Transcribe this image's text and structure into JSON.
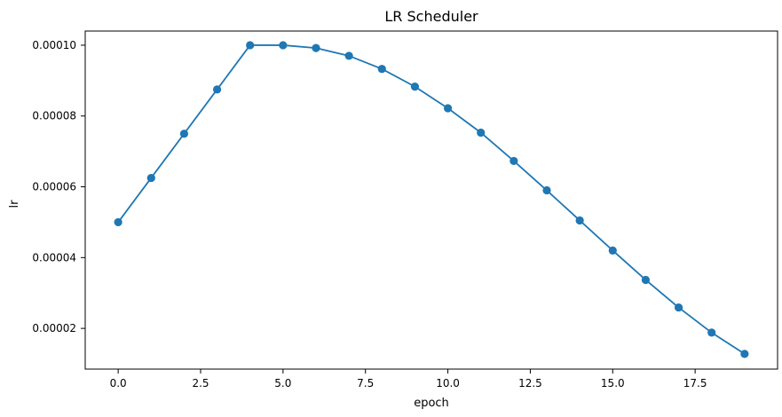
{
  "chart_data": {
    "type": "line",
    "title": "LR Scheduler",
    "xlabel": "epoch",
    "ylabel": "lr",
    "xlim": [
      -1.0,
      20.0
    ],
    "ylim": [
      8.5e-06,
      0.000104
    ],
    "x_ticks": [
      0.0,
      2.5,
      5.0,
      7.5,
      10.0,
      12.5,
      15.0,
      17.5
    ],
    "x_tick_labels": [
      "0.0",
      "2.5",
      "5.0",
      "7.5",
      "10.0",
      "12.5",
      "15.0",
      "17.5"
    ],
    "y_ticks": [
      2e-05,
      4e-05,
      6e-05,
      8e-05,
      0.0001
    ],
    "y_tick_labels": [
      "0.00002",
      "0.00004",
      "0.00006",
      "0.00008",
      "0.00010"
    ],
    "grid": false,
    "series": [
      {
        "color": "#1f77b4",
        "x": [
          0,
          1,
          2,
          3,
          4,
          5,
          6,
          7,
          8,
          9,
          10,
          11,
          12,
          13,
          14,
          15,
          16,
          17,
          18,
          19
        ],
        "y": [
          5e-05,
          6.25e-05,
          7.5e-05,
          8.75e-05,
          0.0001,
          0.0001,
          9.92e-05,
          9.7e-05,
          9.33e-05,
          8.83e-05,
          8.22e-05,
          7.53e-05,
          6.73e-05,
          5.9e-05,
          5.05e-05,
          4.2e-05,
          3.37e-05,
          2.59e-05,
          1.88e-05,
          1.28e-05
        ]
      }
    ]
  }
}
